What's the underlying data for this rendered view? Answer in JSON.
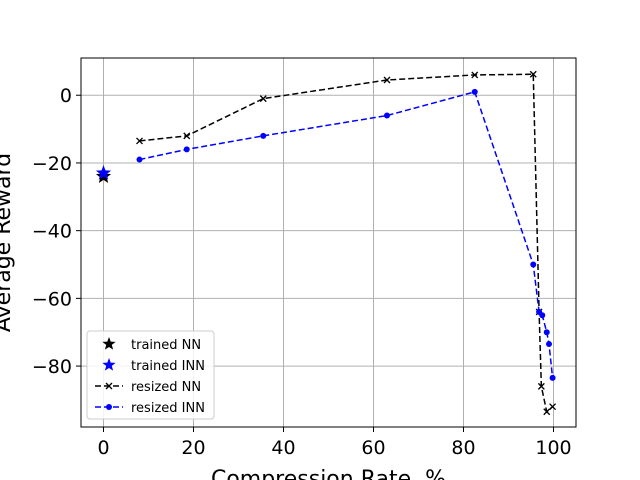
{
  "chart_data": {
    "type": "line",
    "xlabel": "Compression Rate, %",
    "ylabel": "Average Reward",
    "xlim": [
      -5,
      105
    ],
    "ylim": [
      -98,
      11
    ],
    "grid": true,
    "legend_position": "lower-left",
    "xticks": [
      0,
      20,
      40,
      60,
      80,
      100
    ],
    "yticks": [
      0,
      -20,
      -40,
      -60,
      -80
    ],
    "series": [
      {
        "name": "trained NN",
        "type": "scatter",
        "marker": "star",
        "color": "#000000",
        "points": [
          [
            0,
            -24
          ]
        ]
      },
      {
        "name": "trained INN",
        "type": "scatter",
        "marker": "star",
        "color": "#0000ff",
        "points": [
          [
            0,
            -23
          ]
        ]
      },
      {
        "name": "resized NN",
        "type": "line",
        "linestyle": "dashed",
        "marker": "x",
        "color": "#000000",
        "points": [
          [
            8,
            -13.5
          ],
          [
            18.5,
            -12
          ],
          [
            35.5,
            -1
          ],
          [
            63,
            4.5
          ],
          [
            82.5,
            6
          ],
          [
            95.5,
            6.2
          ],
          [
            96.8,
            -64
          ],
          [
            97.3,
            -86
          ],
          [
            98.5,
            -93.5
          ],
          [
            99.8,
            -92
          ]
        ]
      },
      {
        "name": "resized INN",
        "type": "line",
        "linestyle": "dashed",
        "marker": "circle",
        "color": "#0000ff",
        "points": [
          [
            8,
            -19
          ],
          [
            18.5,
            -16
          ],
          [
            35.5,
            -12
          ],
          [
            63,
            -6
          ],
          [
            82.5,
            1
          ],
          [
            95.5,
            -50
          ],
          [
            96.8,
            -64
          ],
          [
            97.5,
            -65
          ],
          [
            98.5,
            -70
          ],
          [
            99,
            -73.5
          ],
          [
            99.8,
            -83.5
          ]
        ]
      }
    ]
  }
}
